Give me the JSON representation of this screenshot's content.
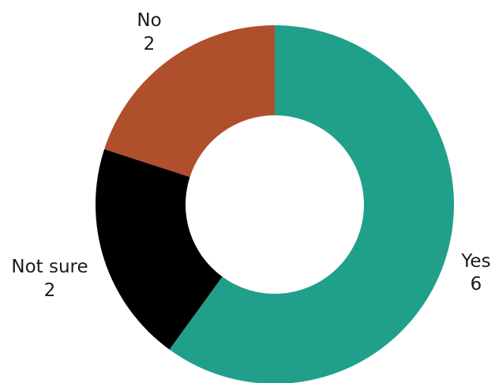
{
  "chart_data": {
    "type": "pie",
    "style": "donut",
    "title": "",
    "categories": [
      "Yes",
      "Not sure",
      "No"
    ],
    "values": [
      6,
      2,
      2
    ],
    "colors": [
      "#20a08a",
      "#000000",
      "#b04f2c"
    ],
    "start_angle_deg": 0,
    "direction": "clockwise",
    "legend": "none",
    "labels": [
      {
        "name": "Yes",
        "value": "6"
      },
      {
        "name": "Not sure",
        "value": "2"
      },
      {
        "name": "No",
        "value": "2"
      }
    ]
  }
}
